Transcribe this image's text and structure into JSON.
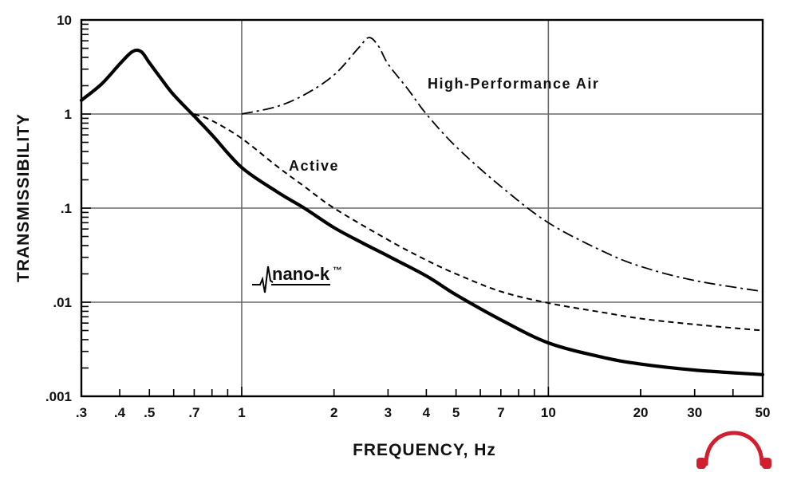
{
  "chart_data": {
    "type": "line",
    "xscale": "log",
    "yscale": "log",
    "xlim": [
      0.3,
      50
    ],
    "ylim": [
      0.001,
      10
    ],
    "xlabel": "FREQUENCY, Hz",
    "ylabel": "TRANSMISSIBILITY",
    "grid": true,
    "x_ticks": [
      0.3,
      0.4,
      0.5,
      0.7,
      1,
      2,
      3,
      4,
      5,
      7,
      10,
      20,
      30,
      50
    ],
    "x_tick_labels": [
      ".3",
      ".4",
      ".5",
      ".7",
      "1",
      "2",
      "3",
      "4",
      "5",
      "7",
      "10",
      "20",
      "30",
      "50"
    ],
    "y_ticks": [
      0.001,
      0.01,
      0.1,
      1,
      10
    ],
    "y_tick_labels": [
      ".001",
      ".01",
      ".1",
      "1",
      "10"
    ],
    "series": [
      {
        "name": "nano-k",
        "style": "solid",
        "color": "#000000",
        "x": [
          0.3,
          0.35,
          0.4,
          0.44,
          0.47,
          0.5,
          0.55,
          0.6,
          0.7,
          0.8,
          1.0,
          1.3,
          1.6,
          2.0,
          2.5,
          3.0,
          4.0,
          5.0,
          7.0,
          10.0,
          15.0,
          20.0,
          30.0,
          50.0
        ],
        "y": [
          1.4,
          2.1,
          3.4,
          4.6,
          4.6,
          3.5,
          2.3,
          1.6,
          0.95,
          0.6,
          0.27,
          0.15,
          0.1,
          0.062,
          0.042,
          0.031,
          0.019,
          0.012,
          0.0065,
          0.0037,
          0.0026,
          0.0022,
          0.0019,
          0.0017
        ]
      },
      {
        "name": "Active",
        "style": "dashed",
        "color": "#000000",
        "x": [
          0.7,
          0.8,
          1.0,
          1.3,
          1.6,
          2.0,
          3.0,
          4.0,
          5.0,
          7.0,
          10.0,
          15.0,
          20.0,
          30.0,
          50.0
        ],
        "y": [
          1.0,
          0.85,
          0.55,
          0.28,
          0.17,
          0.1,
          0.046,
          0.028,
          0.02,
          0.013,
          0.0098,
          0.0078,
          0.0067,
          0.0058,
          0.005
        ]
      },
      {
        "name": "High-Performance Air",
        "style": "dashdot",
        "color": "#000000",
        "x": [
          1.0,
          1.3,
          1.6,
          2.0,
          2.4,
          2.6,
          2.8,
          3.0,
          3.5,
          4.0,
          5.0,
          7.0,
          10.0,
          15.0,
          20.0,
          30.0,
          50.0
        ],
        "y": [
          1.0,
          1.2,
          1.6,
          2.6,
          5.0,
          6.5,
          5.2,
          3.4,
          1.8,
          1.0,
          0.45,
          0.17,
          0.07,
          0.035,
          0.024,
          0.017,
          0.013
        ]
      }
    ],
    "annotations": [
      {
        "text": "High-Performance Air",
        "x": 5.5,
        "y": 3.0
      },
      {
        "text": "Active",
        "x": 2.1,
        "y": 0.45
      }
    ],
    "brand": {
      "text": "nano-k",
      "trademark": "™"
    }
  },
  "colors": {
    "ink": "#000000",
    "grid": "#6a6a6a",
    "logo": "#d02030"
  },
  "logo": {
    "icon": "headphones-icon"
  }
}
